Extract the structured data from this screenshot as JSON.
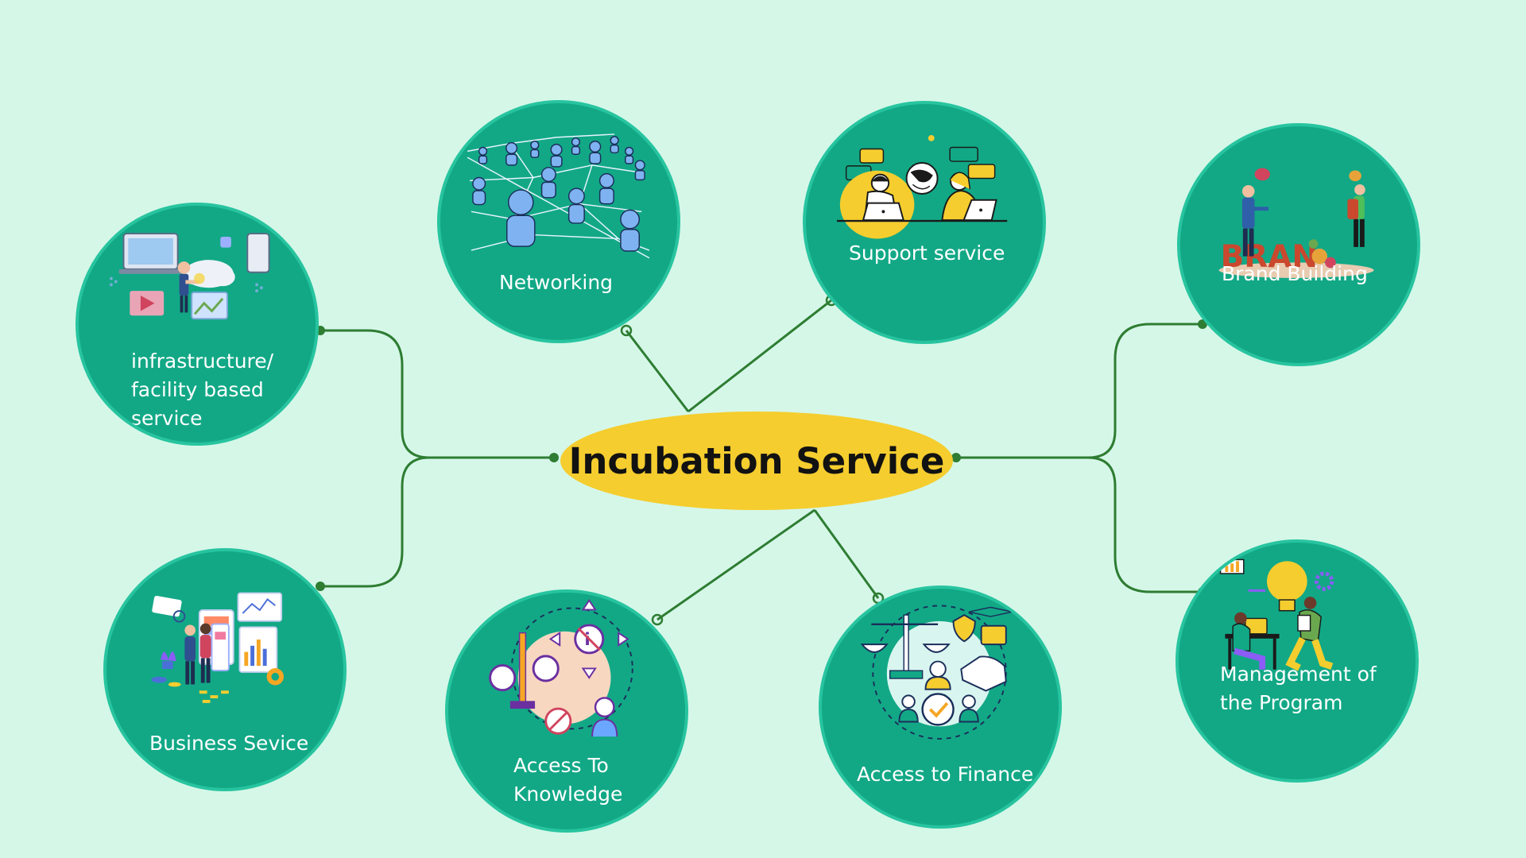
{
  "center": {
    "title": "Incubation Service"
  },
  "nodes": {
    "infrastructure": {
      "label_lines": [
        "infrastructure/",
        "facility based",
        "service"
      ],
      "icon": "cloud-devices-illustration"
    },
    "networking": {
      "label": "Networking",
      "icon": "people-network-illustration"
    },
    "support": {
      "label": "Support service",
      "icon": "customer-support-illustration"
    },
    "brand": {
      "label": "Brand Building",
      "icon": "brand-building-illustration"
    },
    "business": {
      "label": "Business Sevice",
      "icon": "business-dashboard-illustration"
    },
    "knowledge": {
      "label_lines": [
        "Access To",
        "Knowledge"
      ],
      "icon": "information-access-illustration"
    },
    "finance": {
      "label": "Access to Finance",
      "icon": "finance-balance-illustration"
    },
    "management": {
      "label_lines": [
        "Management of",
        "the Program"
      ],
      "icon": "program-management-illustration"
    }
  },
  "colors": {
    "background": "#d5f7e8",
    "node_fill": "#12a886",
    "node_border": "#27c49f",
    "center_fill": "#f5cd2e",
    "connector": "#2e7d32",
    "label_text": "#ffffff"
  }
}
